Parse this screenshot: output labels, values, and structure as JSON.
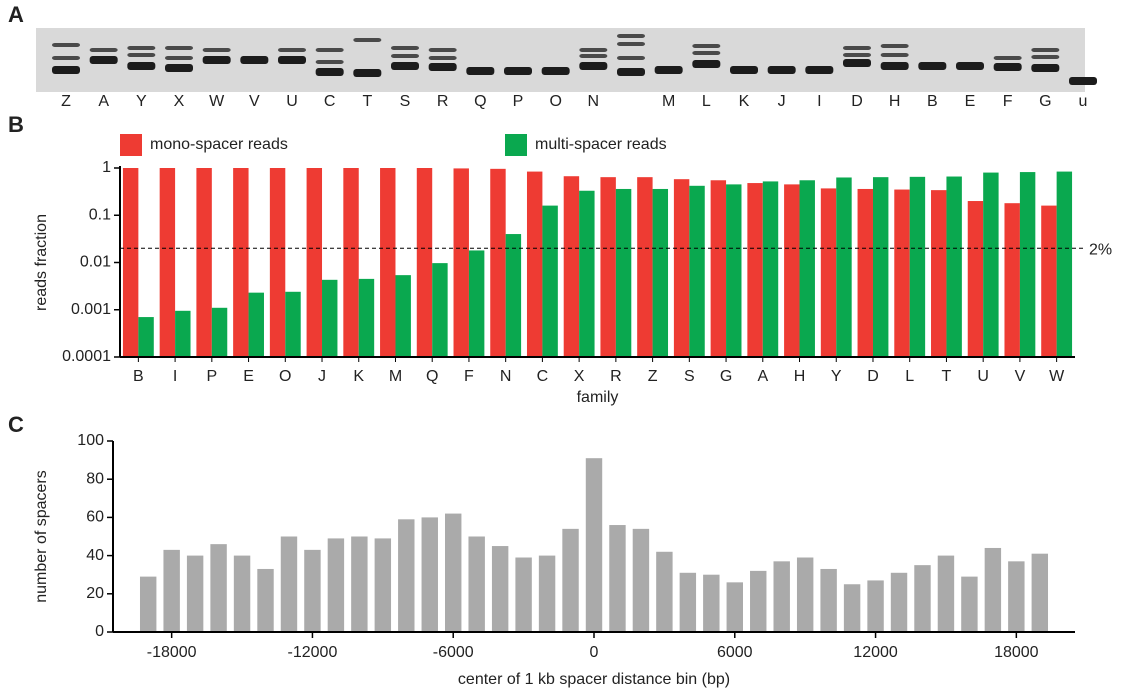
{
  "chart_data": [
    {
      "type": "gel",
      "panel": "A",
      "categories": [
        "Z",
        "A",
        "Y",
        "X",
        "W",
        "V",
        "U",
        "C",
        "T",
        "S",
        "R",
        "Q",
        "P",
        "O",
        "N",
        null,
        "M",
        "L",
        "K",
        "J",
        "I",
        "D",
        "H",
        "B",
        "E",
        "F",
        "G",
        "u"
      ],
      "category_colors": [
        "#1aa64a",
        "#1aa64a",
        "#1aa64a",
        "#1aa64a",
        "#1aa64a",
        "#1aa64a",
        "#1aa64a",
        "#1aa64a",
        "#1aa64a",
        "#1aa64a",
        "#1aa64a",
        "#e8302a",
        "#e8302a",
        "#e8302a",
        "#1aa64a",
        null,
        "#e8302a",
        "#1aa64a",
        "#e8302a",
        "#e8302a",
        "#e8302a",
        "#1aa64a",
        "#1aa64a",
        "#e8302a",
        "#e8302a",
        "#e8302a",
        "#1aa64a",
        "#222222"
      ]
    },
    {
      "type": "grouped_bar",
      "panel": "B",
      "log_scale": true,
      "categories": [
        "B",
        "I",
        "P",
        "E",
        "O",
        "J",
        "K",
        "M",
        "Q",
        "F",
        "N",
        "C",
        "X",
        "R",
        "Z",
        "S",
        "G",
        "A",
        "H",
        "Y",
        "D",
        "L",
        "T",
        "U",
        "V",
        "W"
      ],
      "category_colors": [
        "#e8302a",
        "#e8302a",
        "#e8302a",
        "#e8302a",
        "#e8302a",
        "#e8302a",
        "#e8302a",
        "#e8302a",
        "#e8302a",
        "#e8302a",
        "#1aa64a",
        "#1aa64a",
        "#1aa64a",
        "#1aa64a",
        "#1aa64a",
        "#1aa64a",
        "#1aa64a",
        "#1aa64a",
        "#1aa64a",
        "#1aa64a",
        "#1aa64a",
        "#1aa64a",
        "#1aa64a",
        "#1aa64a",
        "#1aa64a",
        "#1aa64a"
      ],
      "series": [
        {
          "name": "mono-spacer reads",
          "color": "#ee3b33",
          "values": [
            1,
            1,
            1,
            1,
            1,
            1,
            1,
            1,
            1,
            0.98,
            0.96,
            0.84,
            0.67,
            0.64,
            0.64,
            0.58,
            0.55,
            0.48,
            0.45,
            0.37,
            0.36,
            0.35,
            0.34,
            0.2,
            0.18,
            0.16
          ]
        },
        {
          "name": "multi-spacer reads",
          "color": "#0aa84f",
          "values": [
            0.0007,
            0.00095,
            0.0011,
            0.0023,
            0.0024,
            0.0043,
            0.0045,
            0.0054,
            0.0097,
            0.018,
            0.04,
            0.16,
            0.33,
            0.36,
            0.36,
            0.42,
            0.45,
            0.52,
            0.55,
            0.63,
            0.64,
            0.65,
            0.66,
            0.8,
            0.82,
            0.84
          ]
        }
      ],
      "ylim": [
        0.0001,
        1
      ],
      "yticks": [
        0.0001,
        0.001,
        0.01,
        0.1,
        1
      ],
      "ylabel": "reads fraction",
      "xlabel": "family",
      "reference_line": {
        "value": 0.02,
        "label": "2%"
      }
    },
    {
      "type": "bar",
      "panel": "C",
      "x": [
        -19000,
        -18000,
        -17000,
        -16000,
        -15000,
        -14000,
        -13000,
        -12000,
        -11000,
        -10000,
        -9000,
        -8000,
        -7000,
        -6000,
        -5000,
        -4000,
        -3000,
        -2000,
        -1000,
        0,
        1000,
        2000,
        3000,
        4000,
        5000,
        6000,
        7000,
        8000,
        9000,
        10000,
        11000,
        12000,
        13000,
        14000,
        15000,
        16000,
        17000,
        18000,
        19000
      ],
      "values": [
        29,
        43,
        40,
        46,
        40,
        33,
        50,
        43,
        49,
        50,
        49,
        59,
        60,
        62,
        50,
        45,
        39,
        40,
        54,
        91,
        56,
        54,
        42,
        31,
        30,
        26,
        32,
        37,
        39,
        33,
        25,
        27,
        31,
        35,
        40,
        29,
        44,
        37,
        41
      ],
      "color": "#aaaaaa",
      "xlim": [
        -20500,
        20500
      ],
      "xticks": [
        -18000,
        -12000,
        -6000,
        0,
        6000,
        12000,
        18000
      ],
      "ylim": [
        0,
        100
      ],
      "yticks": [
        0,
        20,
        40,
        60,
        80,
        100
      ],
      "ylabel": "number of spacers",
      "xlabel": "center of 1 kb spacer distance bin (bp)"
    }
  ]
}
